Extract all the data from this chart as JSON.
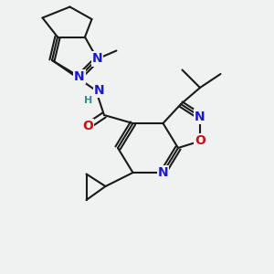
{
  "background_color": "#f0f2f2",
  "atom_colors": {
    "C": "#1a1a1a",
    "N": "#1919cc",
    "O": "#cc1111",
    "H": "#3a8a8a"
  },
  "bond_color": "#1a1a1a",
  "bond_width": 1.5,
  "font_size_atoms": 10,
  "font_size_small": 8
}
